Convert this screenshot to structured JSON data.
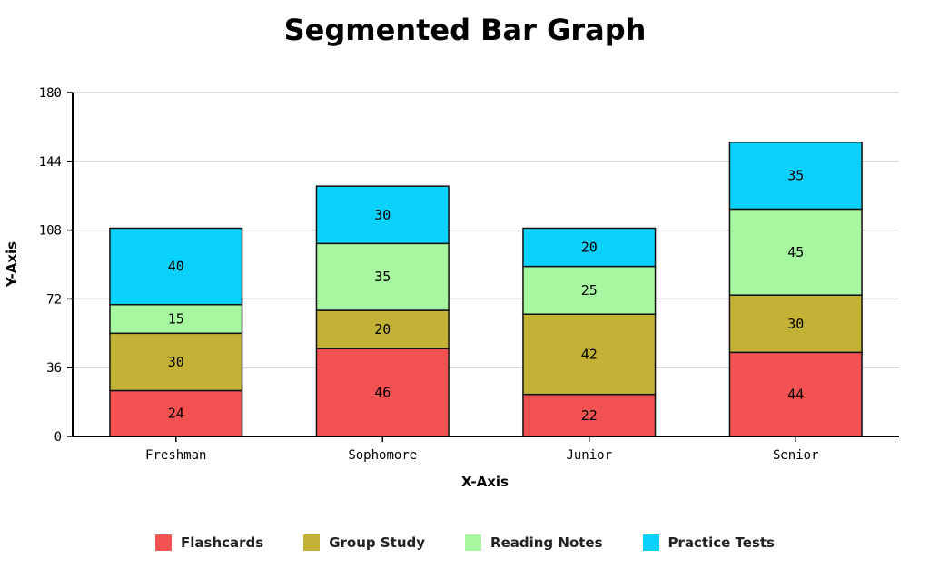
{
  "chart_data": {
    "type": "bar",
    "stacked": true,
    "title": "Segmented Bar Graph",
    "xlabel": "X-Axis",
    "ylabel": "Y-Axis",
    "ylim": [
      0,
      180
    ],
    "yticks": [
      0,
      36,
      72,
      108,
      144,
      180
    ],
    "grid": true,
    "legend_position": "bottom",
    "categories": [
      "Freshman",
      "Sophomore",
      "Junior",
      "Senior"
    ],
    "series": [
      {
        "name": "Flashcards",
        "color": "#f25252",
        "values": [
          24,
          46,
          22,
          44
        ]
      },
      {
        "name": "Group Study",
        "color": "#c4b237",
        "values": [
          30,
          20,
          42,
          30
        ]
      },
      {
        "name": "Reading Notes",
        "color": "#a6f7a0",
        "values": [
          15,
          35,
          25,
          45
        ]
      },
      {
        "name": "Practice Tests",
        "color": "#0ad1fb",
        "values": [
          40,
          30,
          20,
          35
        ]
      }
    ]
  }
}
